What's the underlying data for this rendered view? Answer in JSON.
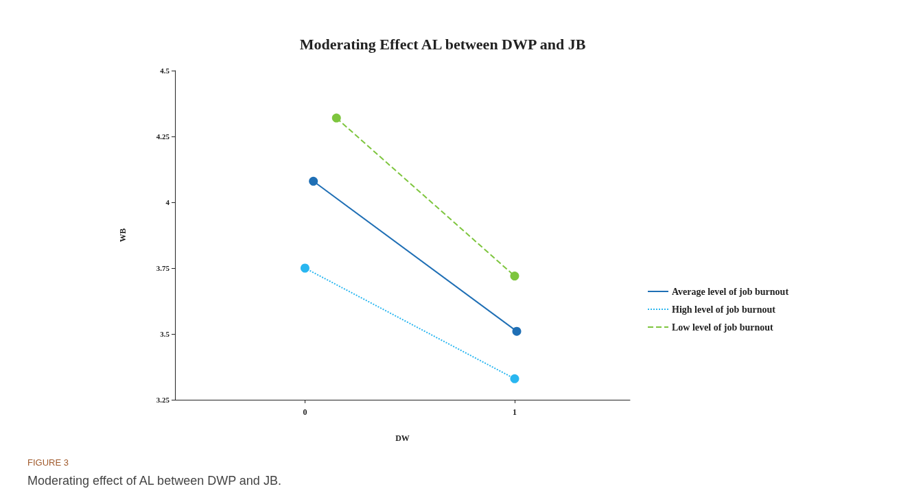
{
  "chart_data": {
    "type": "line",
    "title": "Moderating Effect AL between DWP and JB",
    "xlabel": "DW",
    "ylabel": "WB",
    "annotations": [
      "FIGURE 3",
      "Moderating effect of AL between DWP and JB."
    ],
    "xlim": [
      -0.62,
      1.55
    ],
    "xticks": [
      0,
      1
    ],
    "ylim": [
      3.25,
      4.5
    ],
    "yticks": [
      3.25,
      3.5,
      3.75,
      4,
      4.25,
      4.5
    ],
    "legend": "right",
    "marker": "circle",
    "series": [
      {
        "name": "Average level of job burnout",
        "color": "#1f6fb5",
        "line_style": "solid",
        "x": [
          0.04,
          1.01
        ],
        "values": [
          4.08,
          3.51
        ]
      },
      {
        "name": "High level of job burnout",
        "color": "#29b6f0",
        "line_style": "dotted",
        "x": [
          0,
          1
        ],
        "values": [
          3.75,
          3.33
        ]
      },
      {
        "name": "Low level of job burnout",
        "color": "#7dc53d",
        "line_style": "dashed",
        "x": [
          0.15,
          1
        ],
        "values": [
          4.32,
          3.72
        ]
      }
    ]
  }
}
